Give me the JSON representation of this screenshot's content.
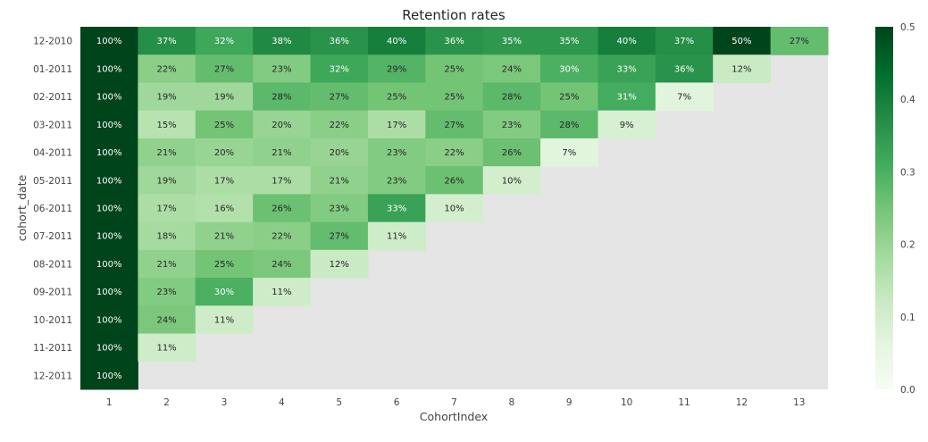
{
  "chart_data": {
    "type": "heatmap",
    "title": "Retention rates",
    "xlabel": "CohortIndex",
    "ylabel": "cohort_date",
    "x_categories": [
      "1",
      "2",
      "3",
      "4",
      "5",
      "6",
      "7",
      "8",
      "9",
      "10",
      "11",
      "12",
      "13"
    ],
    "y_categories": [
      "12-2010",
      "01-2011",
      "02-2011",
      "03-2011",
      "04-2011",
      "05-2011",
      "06-2011",
      "07-2011",
      "08-2011",
      "09-2011",
      "10-2011",
      "11-2011",
      "12-2011"
    ],
    "values": [
      [
        1.0,
        0.37,
        0.32,
        0.38,
        0.36,
        0.4,
        0.36,
        0.35,
        0.35,
        0.4,
        0.37,
        0.5,
        0.27
      ],
      [
        1.0,
        0.22,
        0.27,
        0.23,
        0.32,
        0.29,
        0.25,
        0.24,
        0.3,
        0.33,
        0.36,
        0.12,
        null
      ],
      [
        1.0,
        0.19,
        0.19,
        0.28,
        0.27,
        0.25,
        0.25,
        0.28,
        0.25,
        0.31,
        0.07,
        null,
        null
      ],
      [
        1.0,
        0.15,
        0.25,
        0.2,
        0.22,
        0.17,
        0.27,
        0.23,
        0.28,
        0.09,
        null,
        null,
        null
      ],
      [
        1.0,
        0.21,
        0.2,
        0.21,
        0.2,
        0.23,
        0.22,
        0.26,
        0.07,
        null,
        null,
        null,
        null
      ],
      [
        1.0,
        0.19,
        0.17,
        0.17,
        0.21,
        0.23,
        0.26,
        0.1,
        null,
        null,
        null,
        null,
        null
      ],
      [
        1.0,
        0.17,
        0.16,
        0.26,
        0.23,
        0.33,
        0.1,
        null,
        null,
        null,
        null,
        null,
        null
      ],
      [
        1.0,
        0.18,
        0.21,
        0.22,
        0.27,
        0.11,
        null,
        null,
        null,
        null,
        null,
        null,
        null
      ],
      [
        1.0,
        0.21,
        0.25,
        0.24,
        0.12,
        null,
        null,
        null,
        null,
        null,
        null,
        null,
        null
      ],
      [
        1.0,
        0.23,
        0.3,
        0.11,
        null,
        null,
        null,
        null,
        null,
        null,
        null,
        null,
        null
      ],
      [
        1.0,
        0.24,
        0.11,
        null,
        null,
        null,
        null,
        null,
        null,
        null,
        null,
        null,
        null
      ],
      [
        1.0,
        0.11,
        null,
        null,
        null,
        null,
        null,
        null,
        null,
        null,
        null,
        null,
        null
      ],
      [
        1.0,
        null,
        null,
        null,
        null,
        null,
        null,
        null,
        null,
        null,
        null,
        null,
        null
      ]
    ],
    "cell_labels": [
      [
        "100%",
        "37%",
        "32%",
        "38%",
        "36%",
        "40%",
        "36%",
        "35%",
        "35%",
        "40%",
        "37%",
        "50%",
        "27%"
      ],
      [
        "100%",
        "22%",
        "27%",
        "23%",
        "32%",
        "29%",
        "25%",
        "24%",
        "30%",
        "33%",
        "36%",
        "12%",
        ""
      ],
      [
        "100%",
        "19%",
        "19%",
        "28%",
        "27%",
        "25%",
        "25%",
        "28%",
        "25%",
        "31%",
        "7%",
        "",
        ""
      ],
      [
        "100%",
        "15%",
        "25%",
        "20%",
        "22%",
        "17%",
        "27%",
        "23%",
        "28%",
        "9%",
        "",
        "",
        ""
      ],
      [
        "100%",
        "21%",
        "20%",
        "21%",
        "20%",
        "23%",
        "22%",
        "26%",
        "7%",
        "",
        "",
        "",
        ""
      ],
      [
        "100%",
        "19%",
        "17%",
        "17%",
        "21%",
        "23%",
        "26%",
        "10%",
        "",
        "",
        "",
        "",
        ""
      ],
      [
        "100%",
        "17%",
        "16%",
        "26%",
        "23%",
        "33%",
        "10%",
        "",
        "",
        "",
        "",
        "",
        ""
      ],
      [
        "100%",
        "18%",
        "21%",
        "22%",
        "27%",
        "11%",
        "",
        "",
        "",
        "",
        "",
        "",
        ""
      ],
      [
        "100%",
        "21%",
        "25%",
        "24%",
        "12%",
        "",
        "",
        "",
        "",
        "",
        "",
        "",
        ""
      ],
      [
        "100%",
        "23%",
        "30%",
        "11%",
        "",
        "",
        "",
        "",
        "",
        "",
        "",
        "",
        ""
      ],
      [
        "100%",
        "24%",
        "11%",
        "",
        "",
        "",
        "",
        "",
        "",
        "",
        "",
        "",
        ""
      ],
      [
        "100%",
        "11%",
        "",
        "",
        "",
        "",
        "",
        "",
        "",
        "",
        "",
        "",
        ""
      ],
      [
        "100%",
        "",
        "",
        "",
        "",
        "",
        "",
        "",
        "",
        "",
        "",
        "",
        ""
      ]
    ],
    "colormap": "Greens",
    "vmin": 0.0,
    "vmax": 0.5,
    "colorbar_ticks": [
      "0.0",
      "0.1",
      "0.2",
      "0.3",
      "0.4",
      "0.5"
    ],
    "missing_color": "#e5e5e5",
    "grid": false
  }
}
